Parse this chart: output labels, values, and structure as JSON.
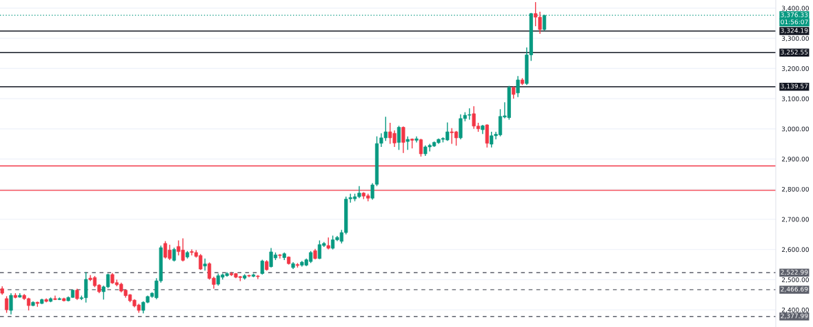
{
  "chart_data": {
    "type": "candlestick",
    "categories": [
      null,
      null,
      null,
      null,
      null,
      null,
      null,
      null,
      null,
      null,
      null,
      null,
      null,
      null,
      null,
      null,
      null,
      null,
      null,
      null,
      null,
      null,
      null,
      null,
      null,
      null,
      null,
      null,
      null,
      null,
      null,
      null,
      null,
      null,
      null,
      null,
      null,
      null,
      null,
      null,
      null,
      null,
      null,
      null,
      null,
      null,
      null,
      null,
      null,
      null,
      null,
      null,
      null,
      null,
      null,
      null,
      null,
      null,
      null,
      null,
      null,
      null,
      null,
      null,
      null,
      null,
      null,
      null,
      null,
      null,
      null,
      null,
      null,
      null,
      null,
      null,
      null,
      null,
      null,
      null,
      null,
      null,
      null,
      null,
      null,
      null,
      null,
      null,
      null,
      null,
      null,
      null,
      null,
      null,
      null,
      null,
      null,
      null,
      null,
      null,
      null,
      null,
      null,
      null,
      null,
      null,
      null,
      null,
      null,
      null,
      null,
      null,
      null,
      null,
      null,
      null,
      null,
      null,
      null,
      null,
      null,
      null,
      null,
      null,
      null,
      null,
      null,
      null,
      null,
      null,
      null,
      null,
      null,
      null,
      null,
      null,
      null,
      null,
      null,
      null,
      null,
      null,
      null,
      null,
      null,
      null,
      null,
      null,
      null,
      null,
      null,
      null,
      null,
      null,
      null,
      null,
      null,
      null,
      null,
      null,
      null,
      null,
      null,
      null,
      null,
      null,
      null,
      null,
      null,
      null,
      null,
      null,
      null,
      null,
      null,
      null
    ],
    "ohlc": [
      [
        2470,
        2478,
        2450,
        2455
      ],
      [
        2437,
        2445,
        2390,
        2400
      ],
      [
        2398,
        2455,
        2385,
        2448
      ],
      [
        2448,
        2455,
        2438,
        2441
      ],
      [
        2442,
        2455,
        2440,
        2448
      ],
      [
        2448,
        2452,
        2433,
        2437
      ],
      [
        2437,
        2440,
        2398,
        2414
      ],
      [
        2414,
        2428,
        2412,
        2425
      ],
      [
        2425,
        2427,
        2410,
        2421
      ],
      [
        2421,
        2437,
        2419,
        2434
      ],
      [
        2434,
        2438,
        2425,
        2428
      ],
      [
        2428,
        2441,
        2425,
        2437
      ],
      [
        2437,
        2447,
        2432,
        2434
      ],
      [
        2434,
        2441,
        2432,
        2437
      ],
      [
        2437,
        2440,
        2428,
        2430
      ],
      [
        2430,
        2444,
        2428,
        2441
      ],
      [
        2441,
        2467,
        2440,
        2465
      ],
      [
        2465,
        2470,
        2433,
        2437
      ],
      [
        2437,
        2447,
        2432,
        2440
      ],
      [
        2440,
        2525,
        2424,
        2501
      ],
      [
        2505,
        2515,
        2495,
        2500
      ],
      [
        2507,
        2512,
        2475,
        2480
      ],
      [
        2482,
        2485,
        2455,
        2460
      ],
      [
        2460,
        2480,
        2434,
        2476
      ],
      [
        2476,
        2520,
        2472,
        2517
      ],
      [
        2517,
        2522,
        2486,
        2489
      ],
      [
        2490,
        2500,
        2478,
        2483
      ],
      [
        2485,
        2490,
        2458,
        2462
      ],
      [
        2465,
        2467,
        2440,
        2447
      ],
      [
        2450,
        2452,
        2425,
        2430
      ],
      [
        2432,
        2435,
        2408,
        2413
      ],
      [
        2416,
        2420,
        2390,
        2398
      ],
      [
        2398,
        2428,
        2388,
        2425
      ],
      [
        2425,
        2447,
        2422,
        2444
      ],
      [
        2444,
        2458,
        2440,
        2455
      ],
      [
        2440,
        2505,
        2435,
        2496
      ],
      [
        2496,
        2613,
        2490,
        2606
      ],
      [
        2620,
        2628,
        2570,
        2574
      ],
      [
        2598,
        2616,
        2565,
        2570
      ],
      [
        2564,
        2606,
        2560,
        2600
      ],
      [
        2610,
        2630,
        2580,
        2593
      ],
      [
        2598,
        2637,
        2560,
        2564
      ],
      [
        2575,
        2595,
        2570,
        2590
      ],
      [
        2593,
        2600,
        2580,
        2590
      ],
      [
        2590,
        2598,
        2573,
        2577
      ],
      [
        2580,
        2585,
        2532,
        2535
      ],
      [
        2545,
        2570,
        2530,
        2552
      ],
      [
        2553,
        2557,
        2500,
        2504
      ],
      [
        2505,
        2510,
        2470,
        2484
      ],
      [
        2485,
        2520,
        2480,
        2513
      ],
      [
        2508,
        2520,
        2500,
        2516
      ],
      [
        2513,
        2525,
        2510,
        2520
      ],
      [
        2520,
        2525,
        2512,
        2516
      ],
      [
        2520,
        2522,
        2505,
        2508
      ],
      [
        2510,
        2512,
        2495,
        2507
      ],
      [
        2505,
        2518,
        2500,
        2513
      ],
      [
        2514,
        2516,
        2508,
        2512
      ],
      [
        2511,
        2520,
        2508,
        2516
      ],
      [
        2512,
        2515,
        2502,
        2510
      ],
      [
        2520,
        2566,
        2517,
        2562
      ],
      [
        2560,
        2564,
        2530,
        2533
      ],
      [
        2543,
        2605,
        2540,
        2592
      ],
      [
        2572,
        2590,
        2565,
        2582
      ],
      [
        2582,
        2585,
        2570,
        2580
      ],
      [
        2573,
        2590,
        2565,
        2586
      ],
      [
        2575,
        2577,
        2550,
        2553
      ],
      [
        2540,
        2558,
        2535,
        2553
      ],
      [
        2550,
        2555,
        2540,
        2547
      ],
      [
        2548,
        2562,
        2543,
        2558
      ],
      [
        2548,
        2570,
        2545,
        2566
      ],
      [
        2560,
        2595,
        2555,
        2590
      ],
      [
        2596,
        2602,
        2567,
        2570
      ],
      [
        2570,
        2630,
        2568,
        2616
      ],
      [
        2613,
        2625,
        2608,
        2620
      ],
      [
        2613,
        2640,
        2600,
        2604
      ],
      [
        2604,
        2646,
        2600,
        2632
      ],
      [
        2632,
        2645,
        2628,
        2640
      ],
      [
        2627,
        2665,
        2620,
        2656
      ],
      [
        2656,
        2775,
        2650,
        2767
      ],
      [
        2768,
        2785,
        2755,
        2772
      ],
      [
        2768,
        2785,
        2760,
        2775
      ],
      [
        2775,
        2810,
        2770,
        2787
      ],
      [
        2787,
        2790,
        2767,
        2777
      ],
      [
        2778,
        2785,
        2760,
        2770
      ],
      [
        2770,
        2820,
        2765,
        2814
      ],
      [
        2816,
        2975,
        2810,
        2951
      ],
      [
        2952,
        2985,
        2940,
        2970
      ],
      [
        2970,
        3040,
        2960,
        2990
      ],
      [
        2990,
        3020,
        2950,
        2970
      ],
      [
        2985,
        2995,
        2940,
        2953
      ],
      [
        2955,
        3010,
        2930,
        3005
      ],
      [
        3005,
        3008,
        2920,
        2955
      ],
      [
        2958,
        2975,
        2930,
        2965
      ],
      [
        2966,
        2968,
        2935,
        2962
      ],
      [
        2962,
        2975,
        2955,
        2967
      ],
      [
        2964,
        2967,
        2908,
        2917
      ],
      [
        2917,
        2945,
        2910,
        2940
      ],
      [
        2940,
        2950,
        2925,
        2945
      ],
      [
        2943,
        2958,
        2940,
        2955
      ],
      [
        2954,
        2968,
        2950,
        2965
      ],
      [
        2965,
        2972,
        2955,
        2968
      ],
      [
        2963,
        3021,
        2960,
        2990
      ],
      [
        2990,
        3002,
        2950,
        2987
      ],
      [
        2990,
        2993,
        2944,
        2970
      ],
      [
        2970,
        3048,
        2965,
        3034
      ],
      [
        3034,
        3055,
        3025,
        3045
      ],
      [
        3045,
        3068,
        3030,
        3047
      ],
      [
        3050,
        3075,
        3000,
        3009
      ],
      [
        3009,
        3020,
        2990,
        3000
      ],
      [
        2997,
        3013,
        2983,
        3010
      ],
      [
        3013,
        3015,
        2938,
        2952
      ],
      [
        2949,
        2990,
        2938,
        2977
      ],
      [
        2977,
        2990,
        2965,
        2982
      ],
      [
        2980,
        3065,
        2975,
        3041
      ],
      [
        3039,
        3088,
        3035,
        3043
      ],
      [
        3037,
        3142,
        3030,
        3137
      ],
      [
        3137,
        3140,
        3100,
        3114
      ],
      [
        3119,
        3175,
        3105,
        3162
      ],
      [
        3162,
        3168,
        3145,
        3150
      ],
      [
        3150,
        3270,
        3145,
        3245
      ],
      [
        3245,
        3384,
        3225,
        3382
      ],
      [
        3382,
        3420,
        3340,
        3370
      ],
      [
        3370,
        3388,
        3315,
        3329
      ],
      [
        3329,
        3378,
        3325,
        3376
      ],
      null,
      null,
      null,
      null,
      null,
      null,
      null,
      null,
      null,
      null,
      null,
      null,
      null,
      null,
      null,
      null,
      null,
      null,
      null,
      null,
      null,
      null,
      null,
      null,
      null,
      null,
      null,
      null,
      null,
      null,
      null,
      null,
      null,
      null,
      null,
      null,
      null,
      null,
      null,
      null,
      null,
      null,
      null,
      null,
      null,
      null,
      null,
      null,
      null,
      null,
      null,
      null
    ],
    "colors": [
      "#f23645",
      "#f23645",
      "#089981",
      "#f23645",
      "#089981",
      "#f23645",
      "#f23645",
      "#089981",
      "#f23645",
      "#089981",
      "#f23645",
      "#089981",
      "#f23645",
      "#089981",
      "#f23645",
      "#089981",
      "#089981",
      "#f23645",
      "#089981",
      "#089981",
      "#f23645",
      "#f23645",
      "#f23645",
      "#089981",
      "#089981",
      "#f23645",
      "#f23645",
      "#f23645",
      "#f23645",
      "#f23645",
      "#f23645",
      "#f23645",
      "#089981",
      "#089981",
      "#089981",
      "#089981",
      "#089981",
      "#f23645",
      "#f23645",
      "#089981",
      "#f23645",
      "#f23645",
      "#089981",
      "#f23645",
      "#f23645",
      "#f23645",
      "#089981",
      "#f23645",
      "#f23645",
      "#089981",
      "#089981",
      "#089981",
      "#f23645",
      "#f23645",
      "#f23645",
      "#089981",
      "#f23645",
      "#089981",
      "#f23645",
      "#089981",
      "#f23645",
      "#089981",
      "#089981",
      "#f23645",
      "#089981",
      "#f23645",
      "#089981",
      "#f23645",
      "#089981",
      "#089981",
      "#089981",
      "#f23645",
      "#089981",
      "#089981",
      "#f23645",
      "#089981",
      "#089981",
      "#089981",
      "#089981",
      "#089981",
      "#089981",
      "#089981",
      "#f23645",
      "#f23645",
      "#089981",
      "#089981",
      "#089981",
      "#089981",
      "#f23645",
      "#f23645",
      "#089981",
      "#f23645",
      "#089981",
      "#f23645",
      "#089981",
      "#f23645",
      "#089981",
      "#089981",
      "#089981",
      "#089981",
      "#089981",
      "#089981",
      "#f23645",
      "#f23645",
      "#089981",
      "#089981",
      "#089981",
      "#f23645",
      "#f23645",
      "#089981",
      "#f23645",
      "#089981",
      "#089981",
      "#089981",
      "#089981",
      "#089981",
      "#f23645",
      "#089981",
      "#f23645",
      "#089981",
      "#089981",
      "#f23645",
      "#f23645",
      "#089981",
      null,
      null,
      null,
      null,
      null,
      null,
      null,
      null,
      null,
      null,
      null,
      null,
      null,
      null,
      null,
      null,
      null,
      null,
      null,
      null,
      null,
      null,
      null,
      null,
      null,
      null,
      null,
      null,
      null,
      null,
      null,
      null,
      null,
      null,
      null,
      null,
      null,
      null,
      null,
      null,
      null,
      null,
      null,
      null,
      null,
      null,
      null,
      null,
      null,
      null,
      null,
      null
    ],
    "ylim": [
      2343,
      3427
    ],
    "yticks": [
      {
        "value": 2400,
        "label": "2,400.00"
      },
      {
        "value": 2500,
        "label": "2,500.00"
      },
      {
        "value": 2600,
        "label": "2,600.00"
      },
      {
        "value": 2700,
        "label": "2,700.00"
      },
      {
        "value": 2800,
        "label": "2,800.00"
      },
      {
        "value": 2900,
        "label": "2,900.00"
      },
      {
        "value": 3000,
        "label": "3,000.00"
      },
      {
        "value": 3100,
        "label": "3,100.00"
      },
      {
        "value": 3200,
        "label": "3,200.00"
      },
      {
        "value": 3300,
        "label": "3,300.00"
      },
      {
        "value": 3400,
        "label": "3,400.00"
      }
    ],
    "grid": "y",
    "ref_lines": [
      {
        "axis": "y",
        "value": 3376.33,
        "label": "3,376.33",
        "color": "#089981",
        "line_style": "dotted"
      },
      {
        "axis": "y",
        "value": 3324.19,
        "label": "3,324.19",
        "color": "#131722",
        "line_style": "solid"
      },
      {
        "axis": "y",
        "value": 3252.55,
        "label": "3,252.55",
        "color": "#131722",
        "line_style": "solid"
      },
      {
        "axis": "y",
        "value": 3139.57,
        "label": "3,139.57",
        "color": "#131722",
        "line_style": "solid"
      },
      {
        "axis": "y",
        "value": 2877,
        "color": "#f23645",
        "line_style": "solid"
      },
      {
        "axis": "y",
        "value": 2796,
        "color": "#f23645",
        "line_style": "solid"
      },
      {
        "axis": "y",
        "value": 2522.99,
        "label": "2,522.99",
        "color": "#5d606b",
        "line_style": "dashed"
      },
      {
        "axis": "y",
        "value": 2466.69,
        "label": "2,466.69",
        "color": "#5d606b",
        "line_style": "dashed"
      },
      {
        "axis": "y",
        "value": 2377.99,
        "label": "2,377.99",
        "color": "#5d606b",
        "line_style": "dashed"
      }
    ],
    "annotations": [
      "01:56:07"
    ]
  }
}
